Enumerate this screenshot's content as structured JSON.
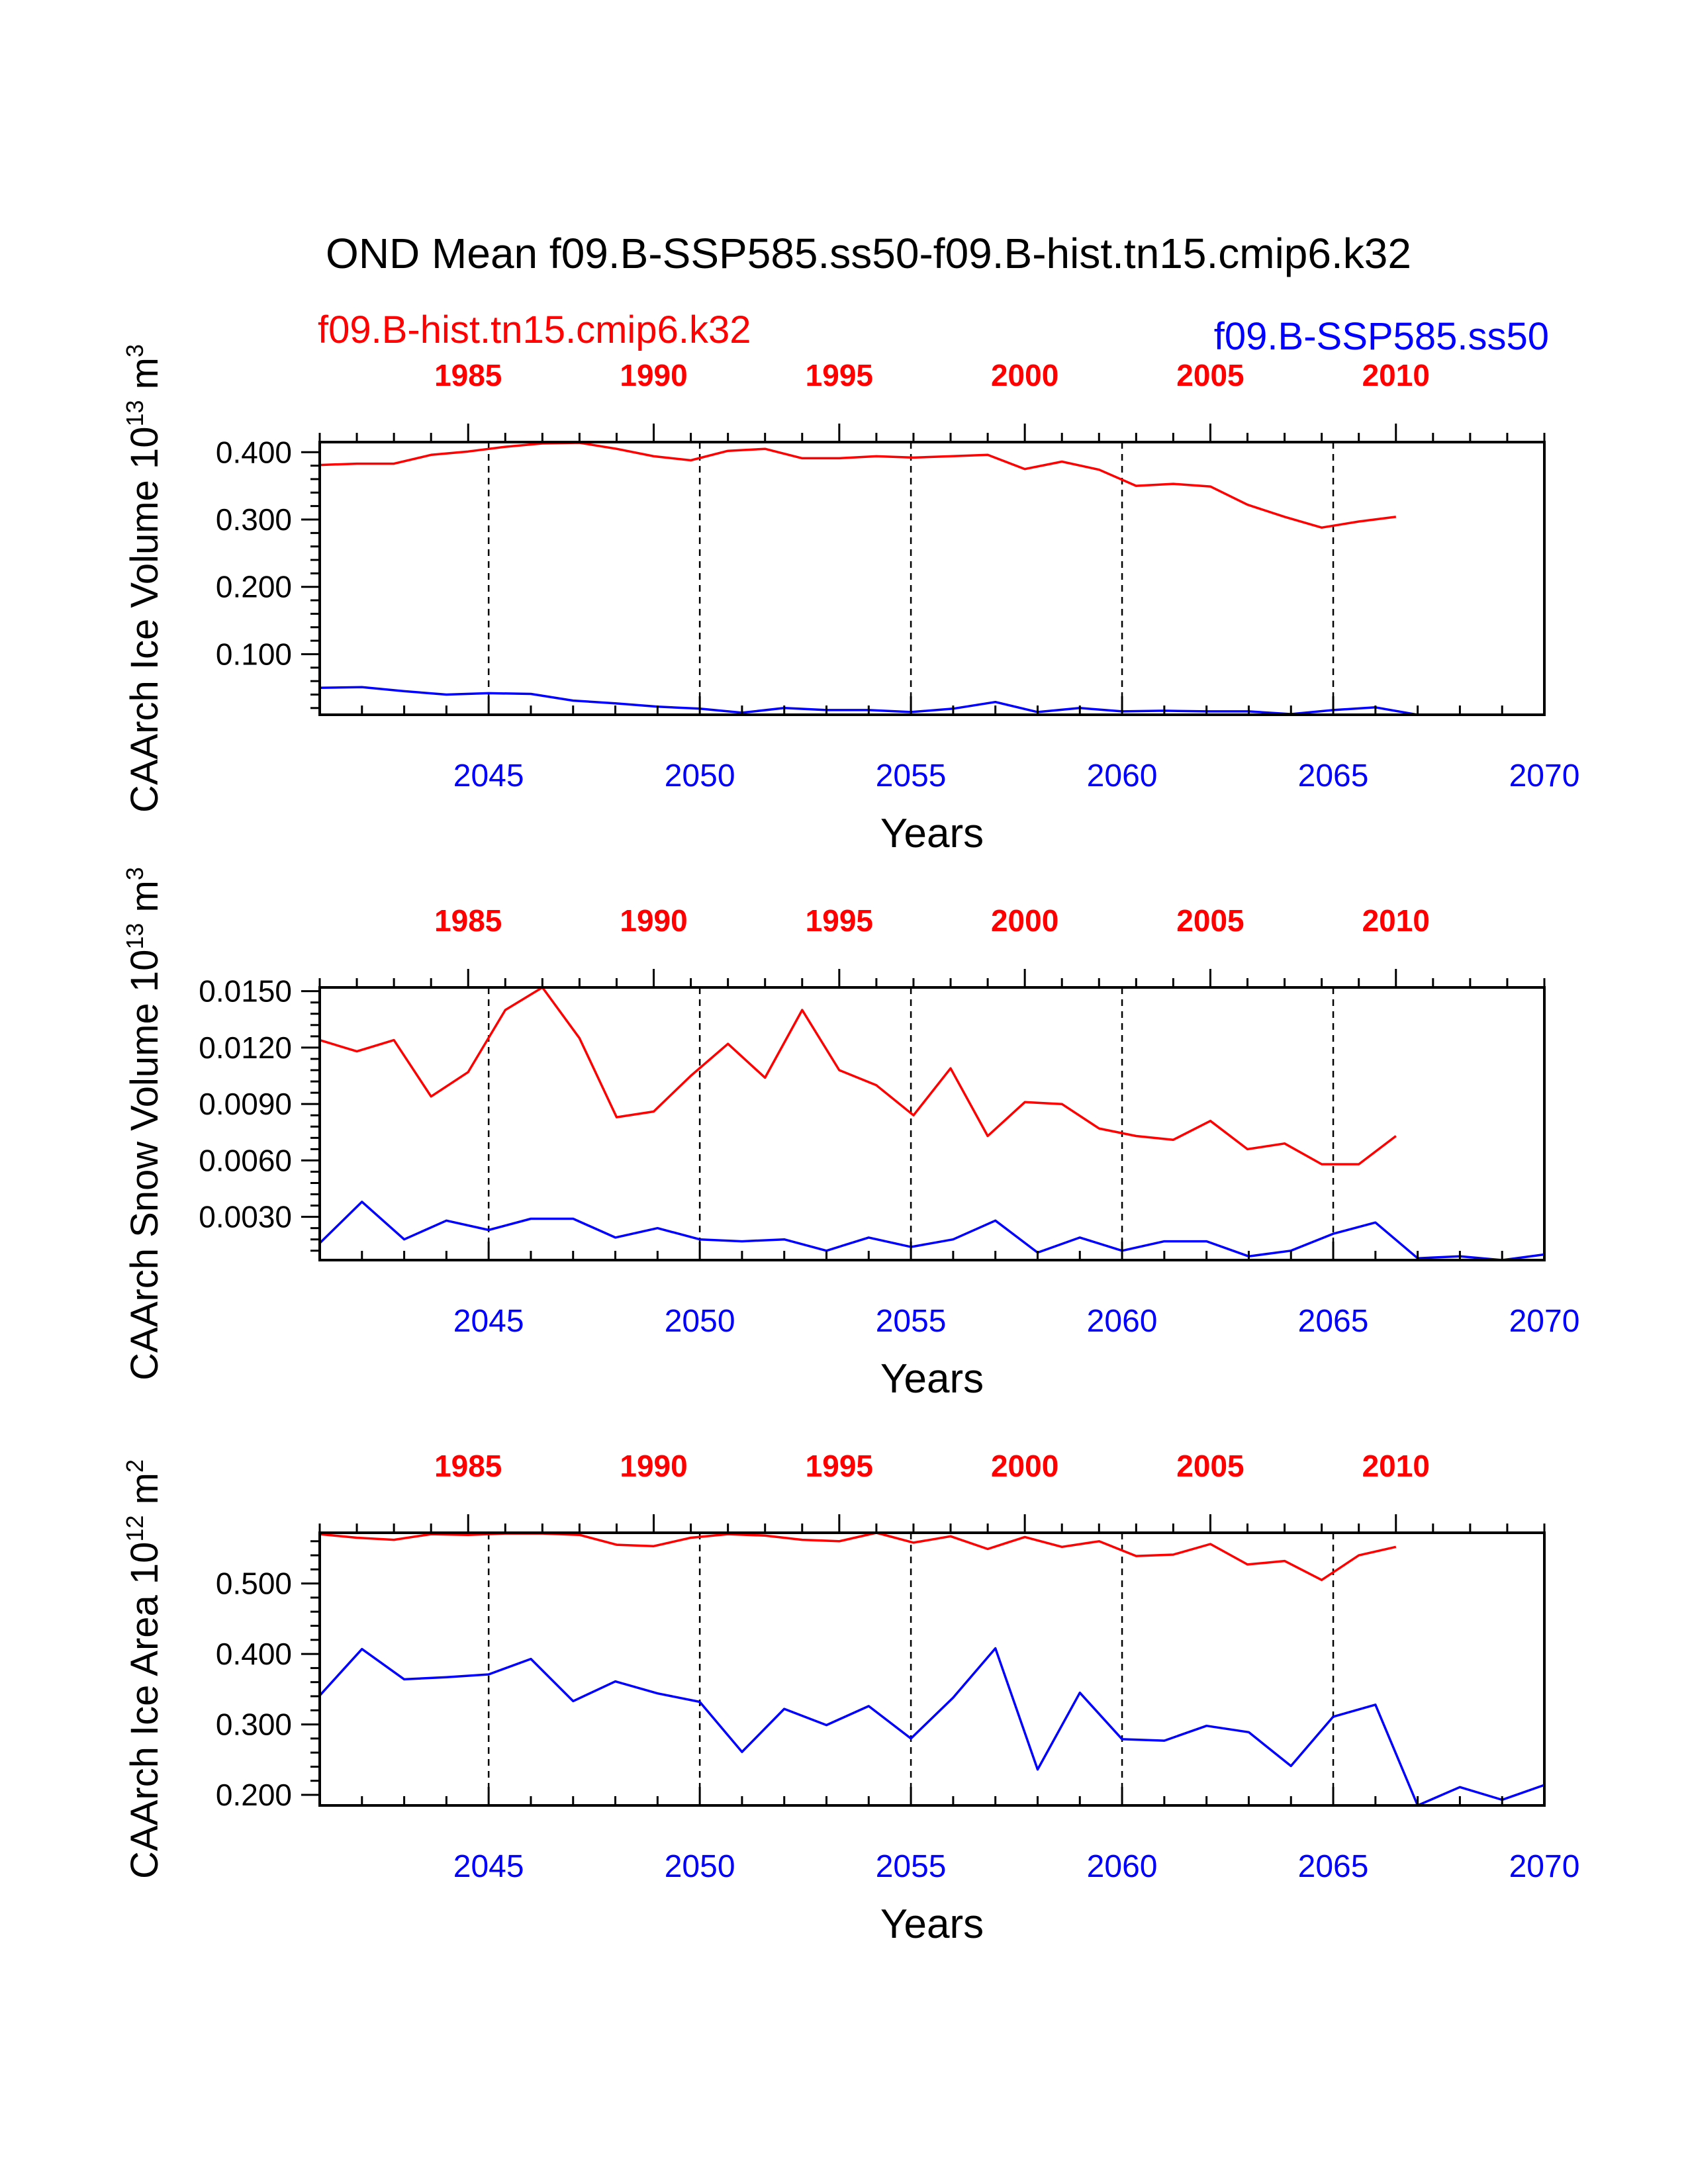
{
  "title": "OND Mean f09.B-SSP585.ss50-f09.B-hist.tn15.cmip6.k32",
  "legend": {
    "hist_label": "f09.B-hist.tn15.cmip6.k32",
    "ssp_label": "f09.B-SSP585.ss50"
  },
  "colors": {
    "hist": "#ff0000",
    "ssp": "#0000ff",
    "axis": "#000000"
  },
  "chart_data": [
    {
      "type": "line",
      "ylabel": "CAArch Ice Volume",
      "ylabel_unit": "10^13 m^3",
      "xlabel": "Years",
      "ylim": [
        0.01,
        0.415
      ],
      "yticks": [
        0.1,
        0.2,
        0.3,
        0.4
      ],
      "yticklabels": [
        "0.100",
        "0.200",
        "0.300",
        "0.400"
      ],
      "top_axis": {
        "range": [
          1981,
          2014
        ],
        "ticks": [
          1985,
          1990,
          1995,
          2000,
          2005,
          2010
        ],
        "ticklabels": [
          "1985",
          "1990",
          "1995",
          "2000",
          "2005",
          "2010"
        ]
      },
      "bottom_axis": {
        "range": [
          2041,
          2070
        ],
        "ticks": [
          2045,
          2050,
          2055,
          2060,
          2065,
          2070
        ],
        "ticklabels": [
          "2045",
          "2050",
          "2055",
          "2060",
          "2065",
          "2070"
        ]
      },
      "grid": "dashed vertical lines at bottom-axis ticks",
      "series": [
        {
          "name": "f09.B-hist.tn15.cmip6.k32",
          "axis": "top",
          "x_start": 1981,
          "values": [
            0.381,
            0.383,
            0.383,
            0.396,
            0.401,
            0.408,
            0.413,
            0.414,
            0.405,
            0.394,
            0.388,
            0.402,
            0.405,
            0.391,
            0.391,
            0.394,
            0.392,
            0.394,
            0.396,
            0.375,
            0.386,
            0.374,
            0.35,
            0.353,
            0.349,
            0.322,
            0.304,
            0.288,
            0.297,
            0.304
          ]
        },
        {
          "name": "f09.B-SSP585.ss50",
          "axis": "bottom",
          "x_start": 2041,
          "values": [
            0.05,
            0.051,
            0.045,
            0.04,
            0.042,
            0.041,
            0.031,
            0.027,
            0.022,
            0.019,
            0.013,
            0.02,
            0.017,
            0.017,
            0.014,
            0.019,
            0.029,
            0.014,
            0.02,
            0.015,
            0.016,
            0.015,
            0.015,
            0.011,
            0.017,
            0.021,
            0.01,
            0.01,
            0.01,
            0.01
          ]
        }
      ]
    },
    {
      "type": "line",
      "ylabel": "CAArch Snow Volume",
      "ylabel_unit": "10^13 m^3",
      "xlabel": "Years",
      "ylim": [
        0.0007,
        0.0152
      ],
      "yticks": [
        0.003,
        0.006,
        0.009,
        0.012,
        0.015
      ],
      "yticklabels": [
        "0.0030",
        "0.0060",
        "0.0090",
        "0.0120",
        "0.0150"
      ],
      "top_axis": {
        "range": [
          1981,
          2014
        ],
        "ticks": [
          1985,
          1990,
          1995,
          2000,
          2005,
          2010
        ],
        "ticklabels": [
          "1985",
          "1990",
          "1995",
          "2000",
          "2005",
          "2010"
        ]
      },
      "bottom_axis": {
        "range": [
          2041,
          2070
        ],
        "ticks": [
          2045,
          2050,
          2055,
          2060,
          2065,
          2070
        ],
        "ticklabels": [
          "2045",
          "2050",
          "2055",
          "2060",
          "2065",
          "2070"
        ]
      },
      "grid": "dashed vertical lines at bottom-axis ticks",
      "series": [
        {
          "name": "f09.B-hist.tn15.cmip6.k32",
          "axis": "top",
          "x_start": 1981,
          "values": [
            0.0124,
            0.0118,
            0.0124,
            0.0094,
            0.0107,
            0.014,
            0.0152,
            0.0125,
            0.0083,
            0.0086,
            0.0105,
            0.0122,
            0.0104,
            0.014,
            0.0108,
            0.01,
            0.0084,
            0.0109,
            0.0073,
            0.0091,
            0.009,
            0.0077,
            0.0073,
            0.0071,
            0.0081,
            0.0066,
            0.0069,
            0.0058,
            0.0058,
            0.0073
          ]
        },
        {
          "name": "f09.B-SSP585.ss50",
          "axis": "bottom",
          "x_start": 2041,
          "values": [
            0.0016,
            0.0038,
            0.0018,
            0.0028,
            0.0023,
            0.0029,
            0.0029,
            0.0019,
            0.0024,
            0.0018,
            0.0017,
            0.0018,
            0.0012,
            0.0019,
            0.0014,
            0.0018,
            0.0028,
            0.0011,
            0.0019,
            0.0012,
            0.0017,
            0.0017,
            0.0009,
            0.0012,
            0.0021,
            0.0027,
            0.0008,
            0.0009,
            0.0007,
            0.001
          ]
        }
      ]
    },
    {
      "type": "line",
      "ylabel": "CAArch Ice Area",
      "ylabel_unit": "10^12 m^2",
      "xlabel": "Years",
      "ylim": [
        0.185,
        0.572
      ],
      "yticks": [
        0.2,
        0.3,
        0.4,
        0.5
      ],
      "yticklabels": [
        "0.200",
        "0.300",
        "0.400",
        "0.500"
      ],
      "top_axis": {
        "range": [
          1981,
          2014
        ],
        "ticks": [
          1985,
          1990,
          1995,
          2000,
          2005,
          2010
        ],
        "ticklabels": [
          "1985",
          "1990",
          "1995",
          "2000",
          "2005",
          "2010"
        ]
      },
      "bottom_axis": {
        "range": [
          2041,
          2070
        ],
        "ticks": [
          2045,
          2050,
          2055,
          2060,
          2065,
          2070
        ],
        "ticklabels": [
          "2045",
          "2050",
          "2055",
          "2060",
          "2065",
          "2070"
        ]
      },
      "grid": "dashed vertical lines at bottom-axis ticks",
      "series": [
        {
          "name": "f09.B-hist.tn15.cmip6.k32",
          "axis": "top",
          "x_start": 1981,
          "values": [
            0.57,
            0.565,
            0.562,
            0.57,
            0.569,
            0.571,
            0.571,
            0.569,
            0.555,
            0.553,
            0.565,
            0.57,
            0.568,
            0.562,
            0.56,
            0.572,
            0.558,
            0.567,
            0.549,
            0.566,
            0.552,
            0.56,
            0.539,
            0.541,
            0.556,
            0.527,
            0.532,
            0.505,
            0.54,
            0.552
          ]
        },
        {
          "name": "f09.B-SSP585.ss50",
          "axis": "bottom",
          "x_start": 2041,
          "values": [
            0.341,
            0.407,
            0.364,
            0.367,
            0.371,
            0.393,
            0.333,
            0.361,
            0.344,
            0.332,
            0.261,
            0.322,
            0.299,
            0.326,
            0.28,
            0.338,
            0.408,
            0.236,
            0.345,
            0.279,
            0.277,
            0.298,
            0.289,
            0.241,
            0.311,
            0.328,
            0.185,
            0.211,
            0.193,
            0.214
          ]
        }
      ]
    }
  ]
}
